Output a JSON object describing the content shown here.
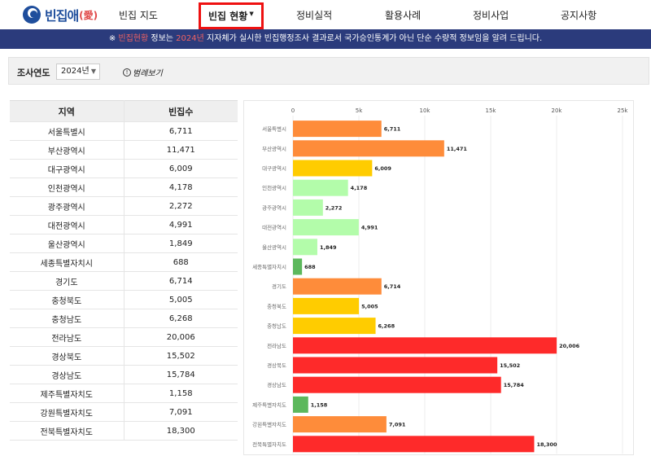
{
  "header": {
    "logo_text": "빈집애",
    "logo_sub": "(愛)",
    "nav": [
      {
        "label": "빈집 지도",
        "active": false
      },
      {
        "label": "빈집 현황",
        "active": true
      },
      {
        "label": "정비실적",
        "active": false
      },
      {
        "label": "활용사례",
        "active": false
      },
      {
        "label": "정비사업",
        "active": false
      },
      {
        "label": "공지사항",
        "active": false
      }
    ]
  },
  "notice": {
    "prefix": "※ ",
    "hl1": "빈집현황",
    "mid": " 정보는 ",
    "hl2": "2024년",
    "suffix": " 지자체가 실시한 빈집행정조사 결과로서 국가승인통계가 아닌 단순 수량적 정보임을 알려 드립니다."
  },
  "filter": {
    "label": "조사연도",
    "year": "2024년",
    "legend_link": "범례보기"
  },
  "table": {
    "col_region": "지역",
    "col_count": "빈집수"
  },
  "chart_data": {
    "type": "bar",
    "orientation": "horizontal",
    "categories": [
      "서울특별시",
      "부산광역시",
      "대구광역시",
      "인천광역시",
      "광주광역시",
      "대전광역시",
      "울산광역시",
      "세종특별자치시",
      "경기도",
      "충청북도",
      "충청남도",
      "전라남도",
      "경상북도",
      "경상남도",
      "제주특별자치도",
      "강원특별자치도",
      "전북특별자치도"
    ],
    "values": [
      6711,
      11471,
      6009,
      4178,
      2272,
      4991,
      1849,
      688,
      6714,
      5005,
      6268,
      20006,
      15502,
      15784,
      1158,
      7091,
      18300
    ],
    "display_values": [
      "6,711",
      "11,471",
      "6,009",
      "4,178",
      "2,272",
      "4,991",
      "1,849",
      "688",
      "6,714",
      "5,005",
      "6,268",
      "20,006",
      "15,502",
      "15,784",
      "1,158",
      "7,091",
      "18,300"
    ],
    "bar_colors": [
      "#fe8c3a",
      "#fe8c3a",
      "#ffcc00",
      "#b3fcaa",
      "#b3fcaa",
      "#b3fcaa",
      "#b3fcaa",
      "#5cb85c",
      "#fe8c3a",
      "#ffcc00",
      "#ffcc00",
      "#fe2a2a",
      "#fe2a2a",
      "#fe2a2a",
      "#5cb85c",
      "#fe8c3a",
      "#fe2a2a"
    ],
    "xlim": [
      0,
      25000
    ],
    "x_ticks": [
      0,
      5000,
      10000,
      15000,
      20000,
      25000
    ],
    "x_tick_labels": [
      "0",
      "5k",
      "10k",
      "15k",
      "20k",
      "25k"
    ],
    "grid": true
  }
}
